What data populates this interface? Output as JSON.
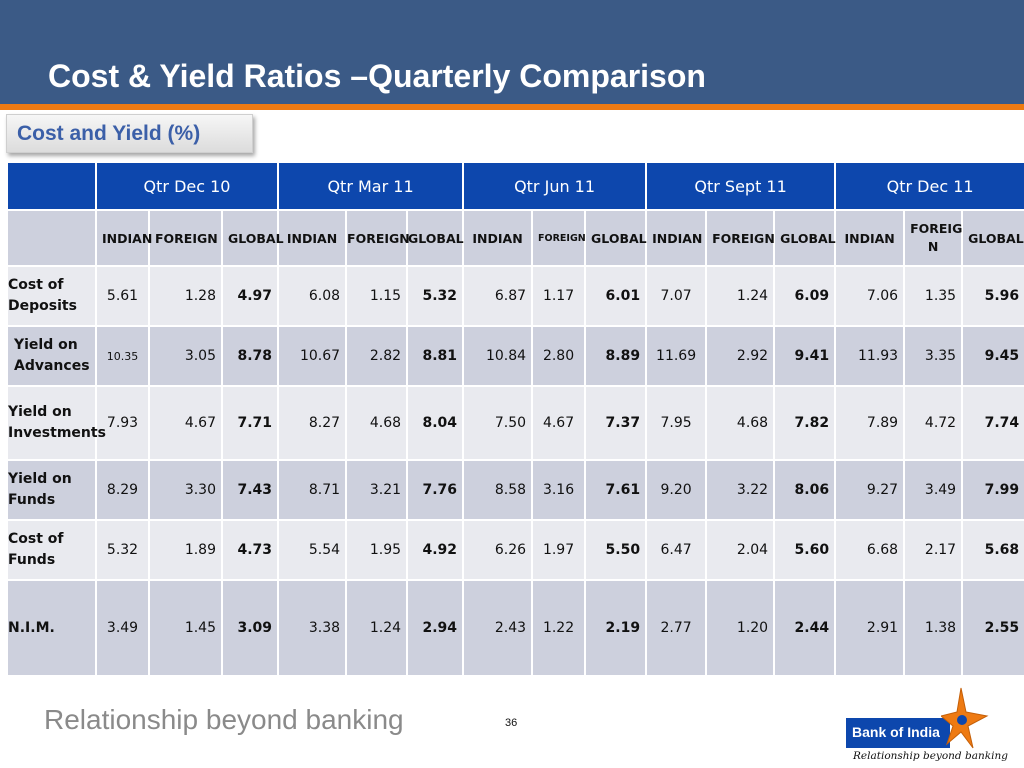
{
  "slide": {
    "title": "Cost & Yield  Ratios –Quarterly Comparison",
    "subtitle": "Cost and Yield (%)",
    "page_number": "36",
    "tagline": "Relationship beyond banking"
  },
  "logo": {
    "name": "Bank of India",
    "tagline": "Relationship beyond banking"
  },
  "table": {
    "periods": [
      "Qtr  Dec 10",
      "Qtr  Mar 11",
      "Qtr  Jun 11",
      "Qtr  Sept 11",
      "Qtr  Dec 11"
    ],
    "subheaders": [
      [
        "INDIAN",
        "FOREIGN",
        "GLOBAL"
      ],
      [
        "INDIAN",
        "FOREIGN",
        "GLOBAL"
      ],
      [
        "INDIAN",
        "FOREIGN",
        "GLOBAL"
      ],
      [
        "INDIAN",
        "FOREIGN",
        "GLOBAL"
      ],
      [
        "INDIAN",
        "FOREIG\nN",
        "GLOBAL"
      ]
    ],
    "rows": [
      {
        "label": "Cost of\nDeposits",
        "values": [
          "5.61",
          "1.28",
          "4.97",
          "6.08",
          "1.15",
          "5.32",
          "6.87",
          "1.17",
          "6.01",
          "7.07",
          "1.24",
          "6.09",
          "7.06",
          "1.35",
          "5.96"
        ]
      },
      {
        "label": "Yield on\nAdvances",
        "values": [
          "10.35",
          "3.05",
          "8.78",
          "10.67",
          "2.82",
          "8.81",
          "10.84",
          "2.80",
          "8.89",
          "11.69",
          "2.92",
          "9.41",
          "11.93",
          "3.35",
          "9.45"
        ]
      },
      {
        "label": "Yield on\nInvestments",
        "values": [
          "7.93",
          "4.67",
          "7.71",
          "8.27",
          "4.68",
          "8.04",
          "7.50",
          "4.67",
          "7.37",
          "7.95",
          "4.68",
          "7.82",
          "7.89",
          "4.72",
          "7.74"
        ]
      },
      {
        "label": "Yield on\nFunds",
        "values": [
          "8.29",
          "3.30",
          "7.43",
          "8.71",
          "3.21",
          "7.76",
          "8.58",
          "3.16",
          "7.61",
          "9.20",
          "3.22",
          "8.06",
          "9.27",
          "3.49",
          "7.99"
        ]
      },
      {
        "label": "Cost of\nFunds",
        "values": [
          "5.32",
          "1.89",
          "4.73",
          "5.54",
          "1.95",
          "4.92",
          "6.26",
          "1.97",
          "5.50",
          "6.47",
          "2.04",
          "5.60",
          "6.68",
          "2.17",
          "5.68"
        ]
      },
      {
        "label": "N.I.M.",
        "values": [
          "3.49",
          "1.45",
          "3.09",
          "3.38",
          "1.24",
          "2.94",
          "2.43",
          "1.22",
          "2.19",
          "2.77",
          "1.20",
          "2.44",
          "2.91",
          "1.38",
          "2.55"
        ]
      }
    ]
  },
  "colors": {
    "header_bg": "#3b5a86",
    "accent_orange": "#ee7a12",
    "table_header_blue": "#0d47ad",
    "row_light": "#e9eaef",
    "row_dark": "#cdd0dd",
    "subtitle_text": "#3b5fa8"
  }
}
